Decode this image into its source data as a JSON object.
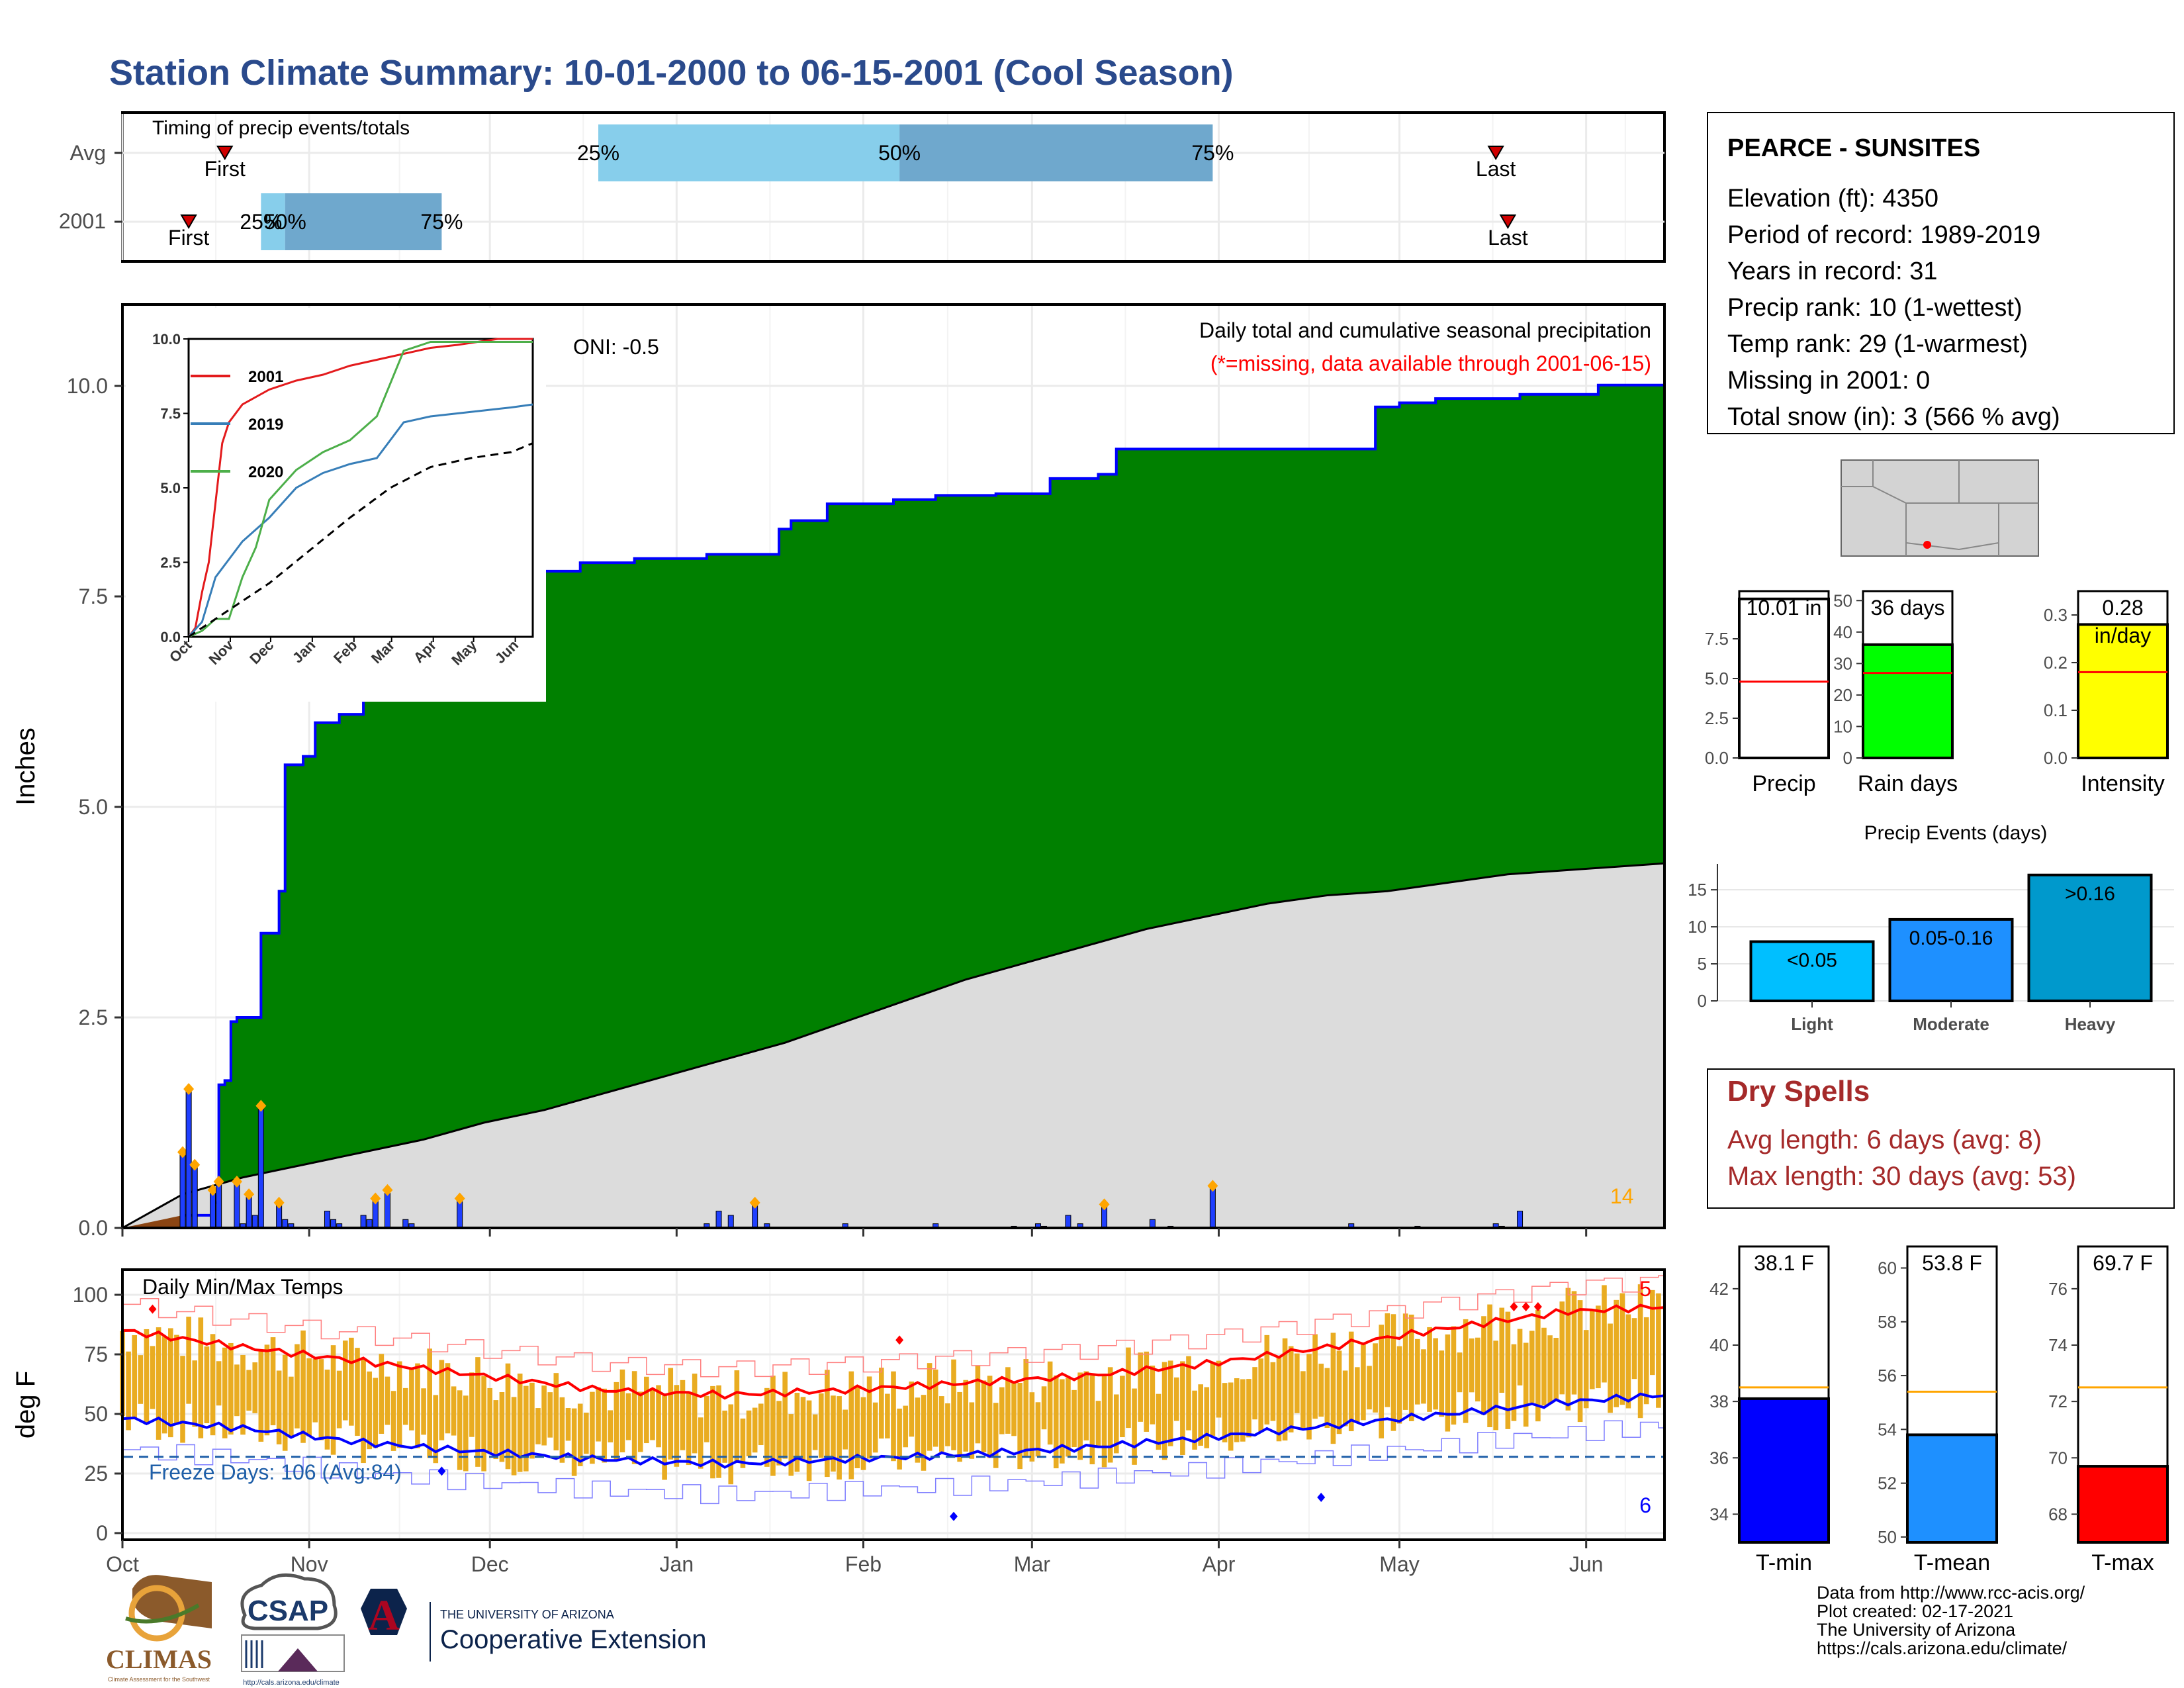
{
  "page": {
    "title": "Station Climate Summary: 10-01-2000 to 06-15-2001 (Cool Season)",
    "colors": {
      "title": "#2a4a8c",
      "precip_fill": "#008000",
      "precip_line": "#0000ff",
      "avg_fill": "#dcdcdc",
      "bars": "#1f3fff",
      "marker": "#ffa500",
      "drybrown": "#8b4513",
      "tmax": "#ff0000",
      "tmin": "#0000ff",
      "temp_bar": "#e9ac21",
      "dry_text": "#a52a2a"
    }
  },
  "timing": {
    "title": "Timing of precip events/totals",
    "rows": [
      "Avg",
      "2001"
    ],
    "avg": {
      "first_day": 17,
      "last_day": 228,
      "q25_day": 79,
      "q50_day": 129,
      "q75_day": 181,
      "labels": {
        "first": "First",
        "last": "Last",
        "q25": "25%",
        "q50": "50%",
        "q75": "75%"
      }
    },
    "y2001": {
      "first_day": 11,
      "last_day": 230,
      "q25_day": 23,
      "q50_day": 27,
      "q75_day": 53,
      "labels": {
        "first": "First",
        "last": "Last",
        "q25": "25%",
        "q50": "50%",
        "q75": "75%"
      }
    }
  },
  "precip_panel": {
    "title": "Daily total and cumulative seasonal precipitation",
    "subtitle": "(*=missing, data available through 2001-06-15)",
    "oni": "ONI: -0.5",
    "ylabel": "Inches",
    "yticks": [
      "0.0",
      "2.5",
      "5.0",
      "7.5",
      "10.0"
    ],
    "count_label": "14"
  },
  "temp_panel": {
    "title": "Daily Min/Max Temps",
    "ylabel": "deg F",
    "yticks": [
      "0",
      "25",
      "50",
      "75",
      "100"
    ],
    "freeze_label": "Freeze Days: 106 (Avg:84)",
    "max_count": "5",
    "min_count": "6"
  },
  "x_axis": {
    "months": [
      "Oct",
      "Nov",
      "Dec",
      "Jan",
      "Feb",
      "Mar",
      "Apr",
      "May",
      "Jun"
    ]
  },
  "inset": {
    "xticks": [
      "Oct",
      "Nov",
      "Dec",
      "Jan",
      "Feb",
      "Mar",
      "Apr",
      "May",
      "Jun"
    ],
    "yticks": [
      "0.0",
      "2.5",
      "5.0",
      "7.5",
      "10.0"
    ],
    "legend": [
      "2001",
      "2019",
      "2020"
    ]
  },
  "station": {
    "name": "PEARCE - SUNSITES",
    "lines": [
      "Elevation (ft): 4350",
      "Period of record: 1989-2019",
      "Years in record: 31",
      "Precip rank: 10 (1-wettest)",
      "Temp rank: 29 (1-warmest)",
      "Missing in 2001: 0",
      "Total snow (in): 3 (566 % avg)"
    ]
  },
  "summary_bars": {
    "precip": {
      "label": "Precip",
      "value_text": "10.01 in",
      "yticks": [
        "0.0",
        "2.5",
        "5.0",
        "7.5"
      ]
    },
    "raindays": {
      "label": "Rain days",
      "value_text": "36 days",
      "yticks": [
        "0",
        "10",
        "20",
        "30",
        "40",
        "50"
      ]
    },
    "intensity": {
      "label": "Intensity",
      "value_text": "0.28",
      "value_unit": "in/day",
      "yticks": [
        "0.0",
        "0.1",
        "0.2",
        "0.3"
      ]
    }
  },
  "events": {
    "title": "Precip Events (days)",
    "yticks": [
      "0",
      "5",
      "10",
      "15"
    ],
    "categories": [
      "Light",
      "Moderate",
      "Heavy"
    ],
    "labels": [
      "<0.05",
      "0.05-0.16",
      ">0.16"
    ]
  },
  "dry_spells": {
    "title": "Dry Spells",
    "avg_line": "Avg length: 6 days (avg: 8)",
    "max_line": "Max length: 30 days (avg: 53)"
  },
  "temp_summary": {
    "tmin": {
      "label": "T-min",
      "value_text": "38.1 F",
      "yticks": [
        "34",
        "36",
        "38",
        "40",
        "42"
      ]
    },
    "tmean": {
      "label": "T-mean",
      "value_text": "53.8 F",
      "yticks": [
        "50",
        "52",
        "54",
        "56",
        "58",
        "60"
      ]
    },
    "tmax": {
      "label": "T-max",
      "value_text": "69.7 F",
      "yticks": [
        "68",
        "70",
        "72",
        "74",
        "76"
      ]
    }
  },
  "footer": {
    "lines": [
      "Data from http://www.rcc-acis.org/",
      "Plot created: 02-17-2021",
      "The University of Arizona",
      "https://cals.arizona.edu/climate/"
    ],
    "logo_climas": "CLIMAS",
    "logo_climas_sub": "Climate Assessment for the Southwest",
    "logo_csap": "CSAP",
    "logo_csap_url": "http://cals.arizona.edu/climate",
    "logo_ua_small": "THE UNIVERSITY OF ARIZONA",
    "logo_ua_big": "Cooperative Extension"
  },
  "chart_data": [
    {
      "type": "area",
      "title": "Daily total and cumulative seasonal precipitation",
      "ylabel": "Inches",
      "ylim": [
        0,
        10.8
      ],
      "x_unit": "day of season (day 0 = 2000-10-01)",
      "series": [
        {
          "name": "2001",
          "x": [
            0,
            5,
            10,
            15,
            16,
            17,
            18,
            19,
            22,
            23,
            26,
            27,
            30,
            32,
            36,
            40,
            45,
            55,
            60,
            70,
            76,
            85,
            97,
            109,
            111,
            114,
            117,
            121,
            128,
            135,
            145,
            154,
            162,
            165,
            190,
            208,
            212,
            218,
            232,
            245,
            256
          ],
          "values": [
            0,
            0.05,
            0.15,
            0.3,
            1.7,
            1.75,
            2.45,
            2.5,
            2.5,
            3.5,
            4.0,
            5.5,
            5.6,
            6.0,
            6.1,
            6.3,
            6.9,
            7.6,
            7.8,
            7.8,
            7.9,
            7.95,
            8.0,
            8.3,
            8.4,
            8.4,
            8.6,
            8.6,
            8.65,
            8.7,
            8.72,
            8.9,
            8.95,
            9.25,
            9.25,
            9.75,
            9.8,
            9.85,
            9.9,
            10.01,
            10.01
          ]
        },
        {
          "name": "",
          "x": [
            0,
            10,
            20,
            30,
            40,
            50,
            60,
            70,
            80,
            90,
            100,
            110,
            120,
            130,
            140,
            150,
            160,
            170,
            180,
            190,
            200,
            210,
            220,
            230,
            240,
            256
          ],
          "values": [
            0,
            0.4,
            0.6,
            0.75,
            0.9,
            1.05,
            1.25,
            1.4,
            1.6,
            1.8,
            2.0,
            2.2,
            2.45,
            2.7,
            2.95,
            3.15,
            3.35,
            3.55,
            3.7,
            3.85,
            3.95,
            4.0,
            4.1,
            4.2,
            4.25,
            4.33
          ]
        }
      ],
      "daily_bars": {
        "x": [
          10,
          11,
          12,
          15,
          16,
          19,
          20,
          21,
          22,
          23,
          26,
          27,
          28,
          34,
          35,
          36,
          40,
          41,
          42,
          44,
          47,
          48,
          56,
          97,
          99,
          101,
          105,
          107,
          120,
          135,
          148,
          152,
          153,
          157,
          159,
          163,
          171,
          174,
          181,
          204,
          215,
          228,
          229,
          232
        ],
        "values": [
          0.9,
          1.65,
          0.75,
          0.45,
          0.55,
          0.55,
          0.05,
          0.4,
          0.15,
          1.45,
          0.3,
          0.1,
          0.05,
          0.2,
          0.1,
          0.05,
          0.15,
          0.1,
          0.35,
          0.45,
          0.1,
          0.05,
          0.35,
          0.05,
          0.2,
          0.15,
          0.3,
          0.05,
          0.05,
          0.05,
          0.02,
          0.05,
          0.02,
          0.15,
          0.05,
          0.28,
          0.1,
          0.02,
          0.5,
          0.05,
          0.02,
          0.05,
          0.02,
          0.2
        ]
      }
    },
    {
      "type": "line",
      "title": "",
      "ylim": [
        0,
        10
      ],
      "series": [
        {
          "name": "2001",
          "x": [
            0,
            5,
            10,
            15,
            20,
            25,
            30,
            40,
            60,
            80,
            100,
            120,
            140,
            160,
            180,
            200,
            230,
            256
          ],
          "values": [
            0,
            0.3,
            1.5,
            2.5,
            4.5,
            6.5,
            7.2,
            7.8,
            8.3,
            8.6,
            8.8,
            9.1,
            9.3,
            9.5,
            9.7,
            9.8,
            10.0,
            10.0
          ]
        },
        {
          "name": "2019",
          "x": [
            0,
            10,
            20,
            40,
            60,
            80,
            100,
            120,
            140,
            160,
            180,
            200,
            220,
            240,
            256
          ],
          "values": [
            0,
            0.5,
            2.0,
            3.2,
            4.0,
            5.0,
            5.5,
            5.8,
            6.0,
            7.2,
            7.4,
            7.5,
            7.6,
            7.7,
            7.8
          ]
        },
        {
          "name": "2020",
          "x": [
            0,
            10,
            20,
            30,
            40,
            50,
            60,
            80,
            100,
            120,
            140,
            160,
            180,
            200,
            256
          ],
          "values": [
            0,
            0.2,
            0.6,
            0.6,
            2.0,
            3.0,
            4.6,
            5.6,
            6.2,
            6.6,
            7.4,
            9.6,
            9.9,
            9.9,
            9.9
          ]
        },
        {
          "name": "",
          "x": [
            0,
            30,
            60,
            90,
            120,
            150,
            180,
            210,
            240,
            256
          ],
          "values": [
            0,
            0.9,
            1.8,
            2.9,
            4.0,
            5.0,
            5.7,
            6.0,
            6.2,
            6.5
          ]
        }
      ]
    },
    {
      "type": "bar",
      "title": "Daily Min/Max Temps",
      "ylabel": "deg F",
      "ylim": [
        0,
        105
      ],
      "avg_max": {
        "x": [
          0,
          20,
          40,
          60,
          80,
          100,
          120,
          140,
          160,
          180,
          200,
          220,
          240,
          256
        ],
        "values": [
          85,
          78,
          72,
          66,
          60,
          58,
          60,
          63,
          66,
          71,
          78,
          86,
          93,
          95
        ]
      },
      "avg_min": {
        "x": [
          0,
          20,
          40,
          60,
          80,
          100,
          120,
          140,
          160,
          180,
          200,
          220,
          240,
          256
        ],
        "values": [
          48,
          44,
          38,
          34,
          31,
          29,
          31,
          33,
          36,
          40,
          45,
          50,
          55,
          58
        ]
      },
      "freeze_line": 32
    },
    {
      "type": "bar",
      "title": "Precip Events (days)",
      "categories": [
        "Light",
        "Moderate",
        "Heavy"
      ],
      "values": [
        8,
        11,
        17
      ]
    },
    {
      "type": "bar",
      "categories": [
        "Precip",
        "Rain days",
        "Intensity"
      ],
      "values": [
        10.01,
        36,
        0.28
      ],
      "averages": [
        4.8,
        27,
        0.18
      ]
    },
    {
      "type": "bar",
      "categories": [
        "T-min",
        "T-mean",
        "T-max"
      ],
      "values": [
        38.1,
        53.8,
        69.7
      ],
      "averages": [
        38.5,
        55.4,
        72.5
      ]
    }
  ]
}
